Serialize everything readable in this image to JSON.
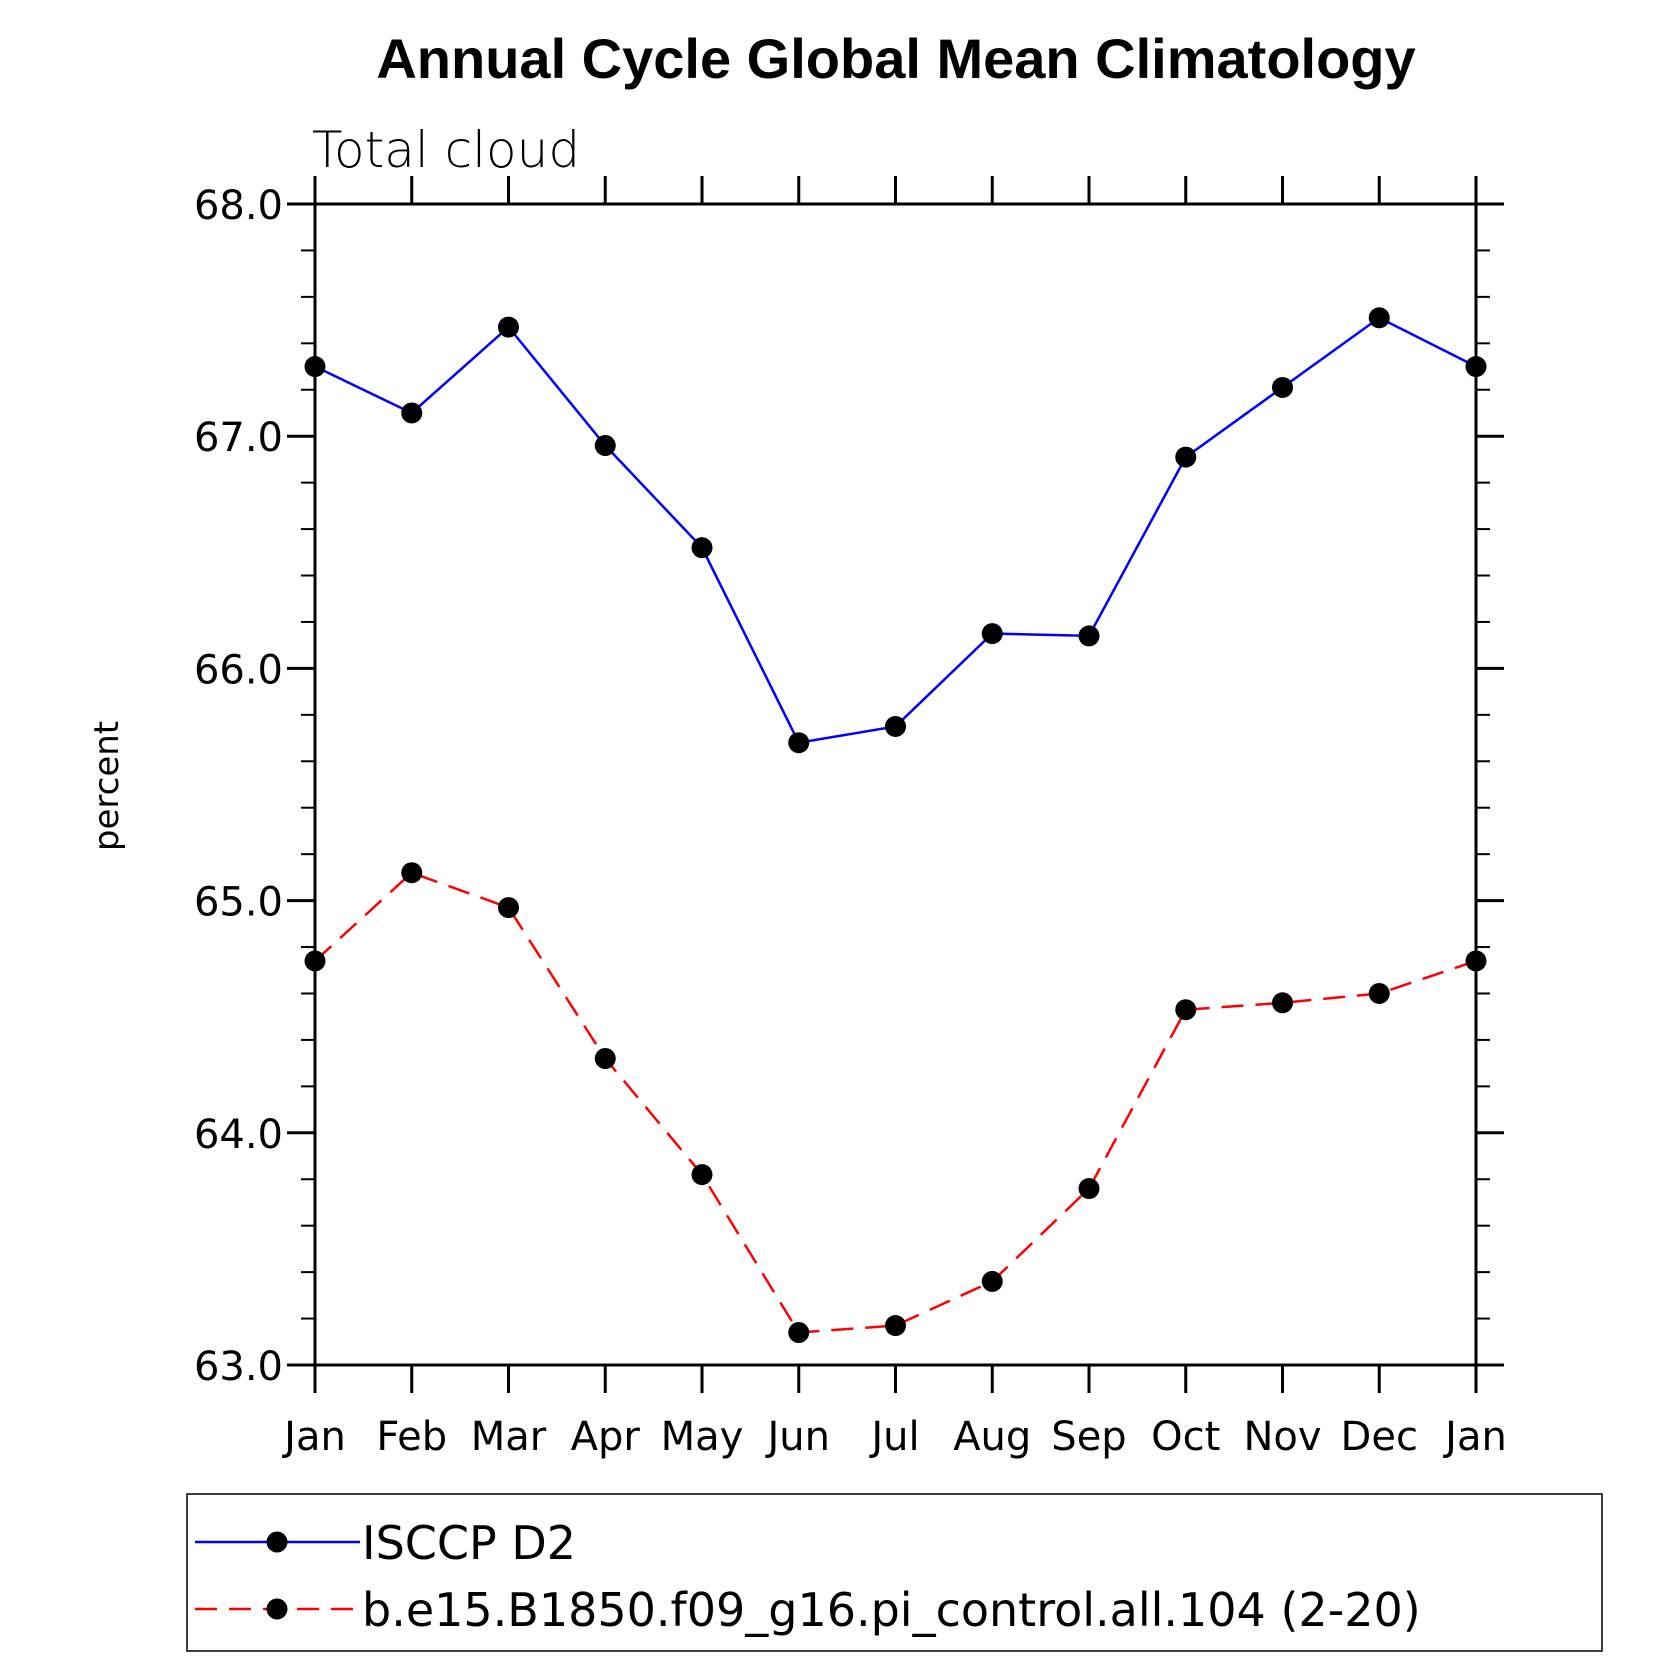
{
  "chart_data": {
    "type": "line",
    "title": "Annual Cycle Global Mean Climatology",
    "subtitle": "Total cloud",
    "ylabel": "percent",
    "xlabel": "",
    "categories": [
      "Jan",
      "Feb",
      "Mar",
      "Apr",
      "May",
      "Jun",
      "Jul",
      "Aug",
      "Sep",
      "Oct",
      "Nov",
      "Dec",
      "Jan"
    ],
    "ylim": [
      63.0,
      68.0
    ],
    "yticks": [
      "63.0",
      "64.0",
      "65.0",
      "66.0",
      "67.0",
      "68.0"
    ],
    "series": [
      {
        "name": "ISCCP D2",
        "color": "#0000ff",
        "line_style": "solid",
        "marker": "filled-circle",
        "values": [
          67.3,
          67.1,
          67.47,
          66.96,
          66.52,
          65.68,
          65.75,
          66.15,
          66.14,
          66.91,
          67.21,
          67.51,
          67.3
        ]
      },
      {
        "name": "b.e15.B1850.f09_g16.pi_control.all.104 (2-20)",
        "color": "#ff0000",
        "line_style": "dashed",
        "marker": "filled-circle",
        "values": [
          64.74,
          65.12,
          64.97,
          64.32,
          63.82,
          63.14,
          63.17,
          63.36,
          63.76,
          64.53,
          64.56,
          64.6,
          64.74
        ]
      }
    ],
    "legend_position": "bottom",
    "grid": false
  }
}
